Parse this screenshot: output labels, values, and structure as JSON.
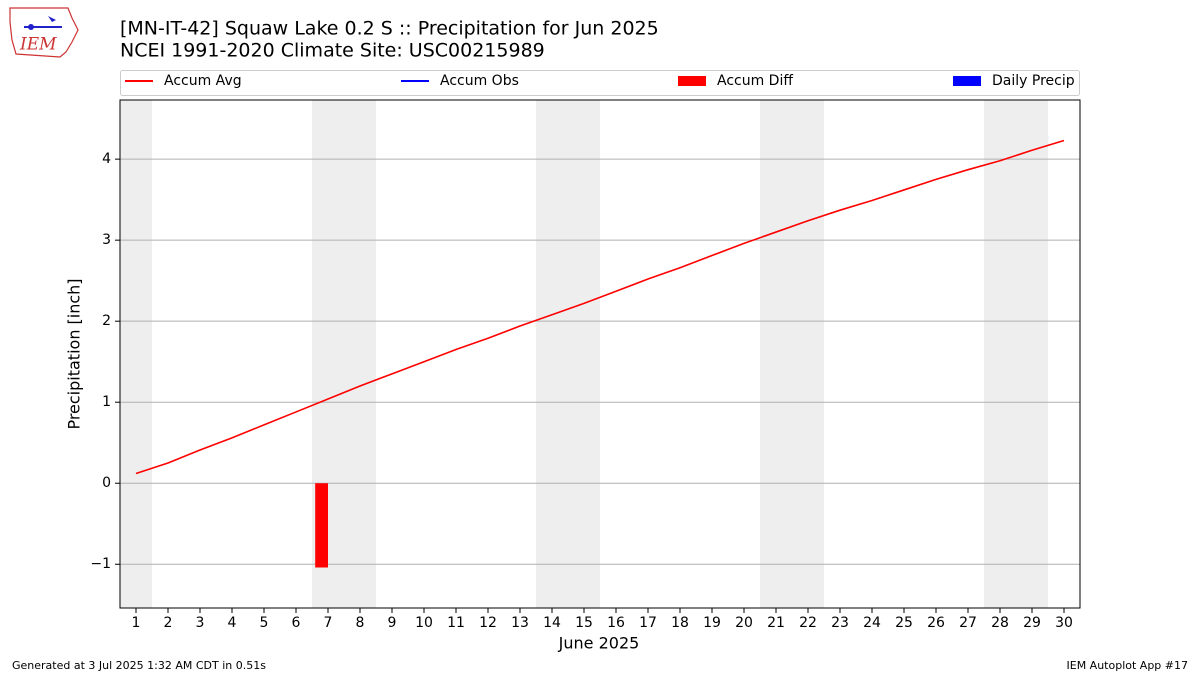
{
  "chart_data": {
    "type": "line",
    "title": "[MN-IT-42] Squaw Lake 0.2 S :: Precipitation for Jun 2025",
    "subtitle": "NCEI 1991-2020 Climate Site: USC00215989",
    "logo_text": "IEM",
    "x_label": "June 2025",
    "y_label": "Precipitation [inch]",
    "x": [
      1,
      2,
      3,
      4,
      5,
      6,
      7,
      8,
      9,
      10,
      11,
      12,
      13,
      14,
      15,
      16,
      17,
      18,
      19,
      20,
      21,
      22,
      23,
      24,
      25,
      26,
      27,
      28,
      29,
      30
    ],
    "series": [
      {
        "name": "Accum Avg",
        "color": "#ff0000",
        "kind": "line",
        "values": [
          0.12,
          0.25,
          0.41,
          0.56,
          0.72,
          0.88,
          1.04,
          1.2,
          1.35,
          1.5,
          1.65,
          1.79,
          1.94,
          2.08,
          2.22,
          2.37,
          2.52,
          2.66,
          2.81,
          2.96,
          3.1,
          3.24,
          3.37,
          3.49,
          3.62,
          3.75,
          3.87,
          3.98,
          4.11,
          4.23
        ]
      },
      {
        "name": "Accum Obs",
        "color": "#0000ff",
        "kind": "line",
        "values": [
          null,
          null,
          null,
          null,
          null,
          null,
          null,
          null,
          null,
          null,
          null,
          null,
          null,
          null,
          null,
          null,
          null,
          null,
          null,
          null,
          null,
          null,
          null,
          null,
          null,
          null,
          null,
          null,
          null,
          null
        ]
      },
      {
        "name": "Accum Diff",
        "color": "#ff0000",
        "kind": "bar",
        "values": [
          null,
          null,
          null,
          null,
          null,
          null,
          -1.04,
          null,
          null,
          null,
          null,
          null,
          null,
          null,
          null,
          null,
          null,
          null,
          null,
          null,
          null,
          null,
          null,
          null,
          null,
          null,
          null,
          null,
          null,
          null
        ]
      },
      {
        "name": "Daily Precip",
        "color": "#0000ff",
        "kind": "bar",
        "values": [
          null,
          null,
          null,
          null,
          null,
          null,
          null,
          null,
          null,
          null,
          null,
          null,
          null,
          null,
          null,
          null,
          null,
          null,
          null,
          null,
          null,
          null,
          null,
          null,
          null,
          null,
          null,
          null,
          null,
          null
        ]
      }
    ],
    "xlim": [
      0.5,
      30.5
    ],
    "xticks": [
      1,
      2,
      3,
      4,
      5,
      6,
      7,
      8,
      9,
      10,
      11,
      12,
      13,
      14,
      15,
      16,
      17,
      18,
      19,
      20,
      21,
      22,
      23,
      24,
      25,
      26,
      27,
      28,
      29,
      30
    ],
    "ylim": [
      -1.54,
      4.73
    ],
    "yticks": [
      {
        "value": -1,
        "label": "−1"
      },
      0,
      1,
      2,
      3,
      4
    ],
    "grid": true,
    "legend": "top",
    "footer_left": "Generated at 3 Jul 2025 1:32 AM CDT in 0.51s",
    "footer_right": "IEM Autoplot App #17"
  }
}
